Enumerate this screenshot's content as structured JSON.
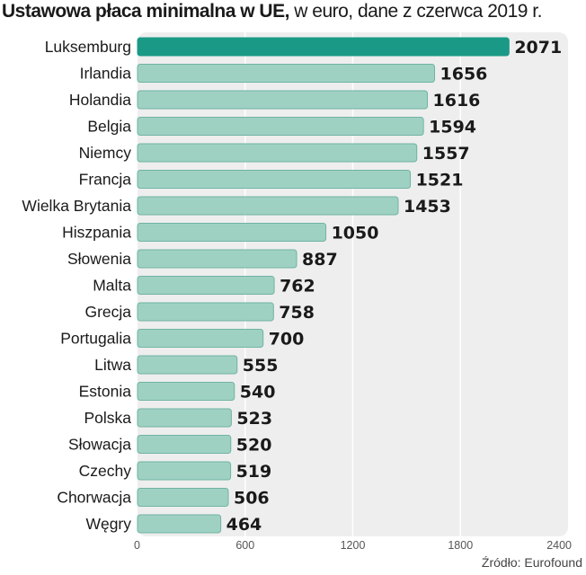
{
  "title_bold": "Ustawowa płaca minimalna w UE,",
  "title_rest": " w euro, dane z czerwca 2019 r.",
  "source": "Źródło: Eurofound",
  "colors": {
    "highlight": "#1a9a86",
    "bar": "#9fd1c3",
    "bar_edge": "#6fb3a2",
    "panel": "#eeeeee",
    "grid": "#ffffff"
  },
  "chart_data": {
    "type": "bar",
    "orientation": "horizontal",
    "categories": [
      "Luksemburg",
      "Irlandia",
      "Holandia",
      "Belgia",
      "Niemcy",
      "Francja",
      "Wielka Brytania",
      "Hiszpania",
      "Słowenia",
      "Malta",
      "Grecja",
      "Portugalia",
      "Litwa",
      "Estonia",
      "Polska",
      "Słowacja",
      "Czechy",
      "Chorwacja",
      "Węgry"
    ],
    "values": [
      2071,
      1656,
      1616,
      1594,
      1557,
      1521,
      1453,
      1050,
      887,
      762,
      758,
      700,
      555,
      540,
      523,
      520,
      519,
      506,
      464
    ],
    "highlight": "Luksemburg",
    "xlim": [
      0,
      2400
    ],
    "xticks": [
      0,
      600,
      1200,
      1800,
      2400
    ],
    "grid": true
  }
}
